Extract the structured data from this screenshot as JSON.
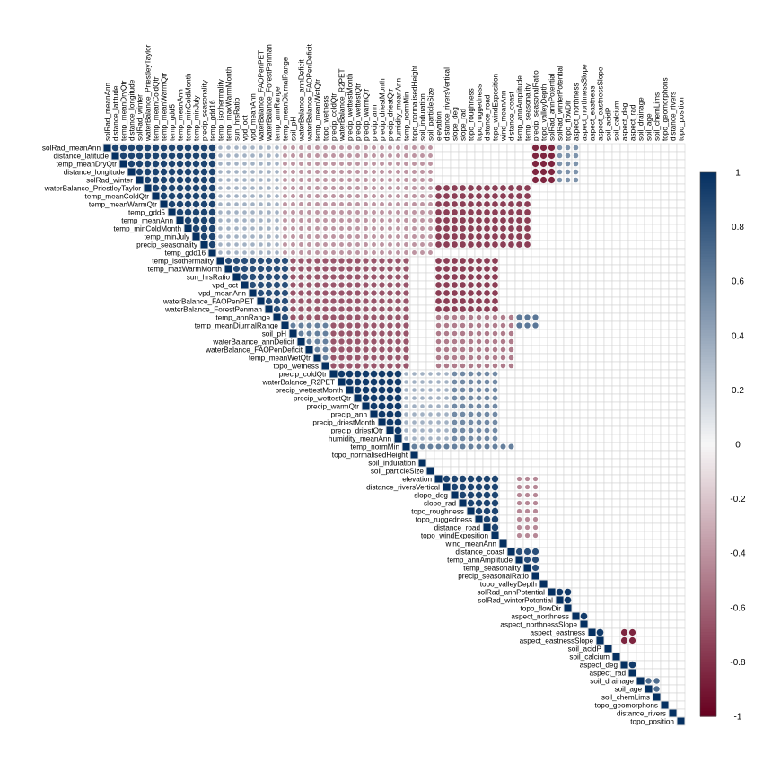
{
  "chart_data": {
    "type": "heatmap",
    "variant": "upper-triangular correlation matrix (circles)",
    "variables": [
      "solRad_meanAnn",
      "distance_latitude",
      "temp_meanDryQtr",
      "distance_longitude",
      "solRad_winter",
      "waterBalance_PriestleyTaylor",
      "temp_meanColdQtr",
      "temp_meanWarmQtr",
      "temp_gdd5",
      "temp_meanAnn",
      "temp_minColdMonth",
      "temp_minJuly",
      "precip_seasonality",
      "temp_gdd16",
      "temp_isothermality",
      "temp_maxWarmMonth",
      "sun_hrsRatio",
      "vpd_oct",
      "vpd_meanAnn",
      "waterBalance_FAOPenPET",
      "waterBalance_ForestPenman",
      "temp_annRange",
      "temp_meanDiurnalRange",
      "soil_pH",
      "waterBalance_annDeficit",
      "waterBalance_FAOPenDeficit",
      "temp_meanWetQtr",
      "topo_wetness",
      "precip_coldQtr",
      "waterBalance_R2PET",
      "precip_wettestMonth",
      "precip_wettestQtr",
      "precip_warmQtr",
      "precip_ann",
      "precip_driestMonth",
      "precip_driestQtr",
      "humidity_meanAnn",
      "temp_normMin",
      "topo_normalisedHeight",
      "soil_induration",
      "soil_particleSize",
      "elevation",
      "distance_riversVertical",
      "slope_deg",
      "slope_rad",
      "topo_roughness",
      "topo_ruggedness",
      "distance_road",
      "topo_windExposition",
      "wind_meanAnn",
      "distance_coast",
      "temp_annAmplitude",
      "temp_seasonality",
      "precip_seasonalRatio",
      "topo_valleyDepth",
      "solRad_annPotential",
      "solRad_winterPotential",
      "topo_flowDir",
      "aspect_northness",
      "aspect_northnessSlope",
      "aspect_eastness",
      "aspect_eastnessSlope",
      "soil_acidP",
      "soil_calcium",
      "aspect_deg",
      "aspect_rad",
      "soil_drainage",
      "soil_age",
      "soil_chemLims",
      "topo_geomorphons",
      "distance_rivers",
      "topo_position"
    ],
    "color_range": [
      -1,
      1
    ],
    "colorbar_ticks": [
      "1",
      "0.8",
      "0.6",
      "0.4",
      "0.2",
      "0",
      "-0.2",
      "-0.4",
      "-0.6",
      "-0.8",
      "-1"
    ],
    "colors": {
      "negative": "#67001F",
      "neutral": "#F7F7F7",
      "positive": "#053061",
      "grid": "#D3D3D3"
    },
    "blocks": [
      {
        "rows": [
          0,
          13
        ],
        "cols": [
          0,
          13
        ],
        "value": 0.9
      },
      {
        "rows": [
          0,
          13
        ],
        "cols": [
          14,
          21
        ],
        "value": 0.35
      },
      {
        "rows": [
          0,
          13
        ],
        "cols": [
          22,
          40
        ],
        "value": -0.4
      },
      {
        "rows": [
          5,
          12
        ],
        "cols": [
          41,
          52
        ],
        "value": -0.75
      },
      {
        "rows": [
          0,
          4
        ],
        "cols": [
          53,
          55
        ],
        "value": -0.85
      },
      {
        "rows": [
          0,
          4
        ],
        "cols": [
          56,
          58
        ],
        "value": 0.5
      },
      {
        "rows": [
          14,
          22
        ],
        "cols": [
          14,
          22
        ],
        "value": 0.85
      },
      {
        "rows": [
          14,
          27
        ],
        "cols": [
          23,
          37
        ],
        "value": -0.65
      },
      {
        "rows": [
          14,
          20
        ],
        "cols": [
          41,
          48
        ],
        "value": -0.75
      },
      {
        "rows": [
          21,
          27
        ],
        "cols": [
          41,
          50
        ],
        "value": -0.5
      },
      {
        "rows": [
          21,
          22
        ],
        "cols": [
          51,
          53
        ],
        "value": 0.65
      },
      {
        "rows": [
          22,
          27
        ],
        "cols": [
          23,
          27
        ],
        "value": 0.6
      },
      {
        "rows": [
          28,
          36
        ],
        "cols": [
          28,
          36
        ],
        "value": 0.95
      },
      {
        "rows": [
          28,
          36
        ],
        "cols": [
          37,
          42
        ],
        "value": 0.35
      },
      {
        "rows": [
          28,
          36
        ],
        "cols": [
          43,
          48
        ],
        "value": 0.55
      },
      {
        "rows": [
          37,
          37
        ],
        "cols": [
          38,
          50
        ],
        "value": 0.6
      },
      {
        "rows": [
          41,
          48
        ],
        "cols": [
          41,
          48
        ],
        "value": 0.9
      },
      {
        "rows": [
          41,
          48
        ],
        "cols": [
          51,
          53
        ],
        "value": -0.45
      },
      {
        "rows": [
          50,
          53
        ],
        "cols": [
          50,
          53
        ],
        "value": 0.85
      },
      {
        "rows": [
          55,
          57
        ],
        "cols": [
          55,
          57
        ],
        "value": 0.95
      },
      {
        "rows": [
          58,
          59
        ],
        "cols": [
          58,
          59
        ],
        "value": 0.95
      },
      {
        "rows": [
          60,
          61
        ],
        "cols": [
          60,
          61
        ],
        "value": 0.95
      },
      {
        "rows": [
          60,
          61
        ],
        "cols": [
          64,
          65
        ],
        "value": -0.85
      },
      {
        "rows": [
          64,
          65
        ],
        "cols": [
          64,
          65
        ],
        "value": 0.95
      },
      {
        "rows": [
          66,
          68
        ],
        "cols": [
          66,
          68
        ],
        "value": 0.7
      }
    ]
  }
}
